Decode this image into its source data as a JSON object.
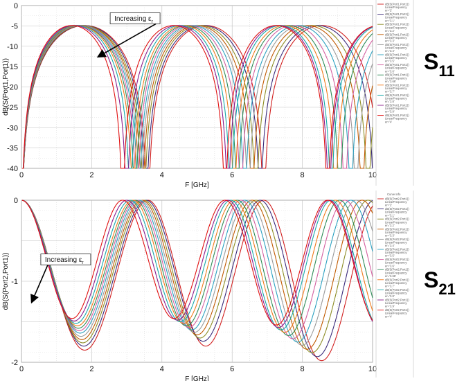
{
  "chart_data": [
    {
      "type": "line",
      "id": "s11",
      "xlabel": "F [GHz]",
      "ylabel": "dB(S(Port1,Port1))",
      "xlim": [
        0,
        10
      ],
      "ylim": [
        -40,
        0
      ],
      "xticks": [
        "0",
        "2",
        "4",
        "6",
        "8",
        "10"
      ],
      "yticks": [
        "0",
        "-5",
        "-10",
        "-15",
        "-20",
        "-25",
        "-30",
        "-35",
        "-40"
      ],
      "grid": true,
      "legend_position": "right",
      "side_label": "S",
      "side_label_sub": "11",
      "annotation": {
        "text": "Increasing ε",
        "sub": "r",
        "at": {
          "x": 2.2,
          "y": -12.5
        },
        "from": {
          "x": 3.0,
          "y": -4.5
        }
      },
      "legend_header": "",
      "legend": [
        {
          "line1": "dB(S(Port1,Port1))",
          "line2": "LinearFrequency",
          "line3": "er='2'"
        },
        {
          "line1": "dB(S(Port1,Port1))",
          "line2": "LinearFrequency",
          "line3": "er='3.1'"
        },
        {
          "line1": "dB(S(Port1,Port1))",
          "line2": "LinearFrequency",
          "line3": "er='3.2'"
        },
        {
          "line1": "dB(S(Port1,Port1))",
          "line2": "LinearFrequency",
          "line3": "er='3.3'"
        },
        {
          "line1": "dB(S(Port1,Port1))",
          "line2": "LinearFrequency",
          "line3": "er='3.4'"
        },
        {
          "line1": "dB(S(Port1,Port1))",
          "line2": "LinearFrequency",
          "line3": "er='3.5'"
        },
        {
          "line1": "dB(S(Port1,Port1))",
          "line2": "LinearFrequency",
          "line3": "er='3.6'"
        },
        {
          "line1": "dB(S(Port1,Port1))",
          "line2": "LinearFrequency",
          "line3": "er='3.66'"
        },
        {
          "line1": "dB(S(Port1,Port1))",
          "line2": "LinearFrequency",
          "line3": "er='3.7'"
        },
        {
          "line1": "dB(S(Port1,Port1))",
          "line2": "LinearFrequency",
          "line3": "er='3.8'"
        },
        {
          "line1": "dB(S(Port1,Port1))",
          "line2": "LinearFrequency",
          "line3": "er='3.9'"
        },
        {
          "line1": "dB(S(Port1,Port1))",
          "line2": "LinearFrequency",
          "line3": "er='4'"
        }
      ],
      "series": [
        {
          "color": "#d11f1f",
          "nulls": [
            3.6,
            6.9
          ]
        },
        {
          "color": "#3a2a7a",
          "nulls": [
            3.55,
            6.8
          ]
        },
        {
          "color": "#8c8c24",
          "nulls": [
            3.49,
            6.68
          ]
        },
        {
          "color": "#c05a00",
          "nulls": [
            3.44,
            6.57
          ]
        },
        {
          "color": "#9a9a9a",
          "nulls": [
            3.39,
            6.46
          ]
        },
        {
          "color": "#2aa0c0",
          "nulls": [
            3.34,
            6.36
          ]
        },
        {
          "color": "#d45fa0",
          "nulls": [
            3.29,
            6.25
          ]
        },
        {
          "color": "#2e8b57",
          "nulls": [
            3.24,
            6.15
          ]
        },
        {
          "color": "#f07a1a",
          "nulls": [
            3.18,
            6.06
          ]
        },
        {
          "color": "#17a9a9",
          "nulls": [
            3.1,
            5.96
          ]
        },
        {
          "color": "#8a1a8a",
          "nulls": [
            3.0,
            5.88
          ]
        },
        {
          "color": "#e01010",
          "nulls": [
            2.88,
            5.8
          ]
        }
      ]
    },
    {
      "type": "line",
      "id": "s21",
      "xlabel": "F [GHz]",
      "ylabel": "dB(S(Port2,Port1))",
      "xlim": [
        0,
        10
      ],
      "ylim": [
        -2,
        0
      ],
      "xticks": [
        "0",
        "2",
        "4",
        "6",
        "8",
        "10"
      ],
      "yticks": [
        "0",
        "-1",
        "-2"
      ],
      "grid": true,
      "legend_position": "right",
      "side_label": "S",
      "side_label_sub": "21",
      "annotation": {
        "text": "Increasing ε",
        "sub": "r",
        "at": {
          "x": 0.3,
          "y": -1.25
        },
        "from": {
          "x": 1.3,
          "y": -0.8
        }
      },
      "legend_header": "Curve Info",
      "legend": [
        {
          "line1": "dB(S(Port2,Port1))",
          "line2": "LinearFrequency",
          "line3": "er='2'"
        },
        {
          "line1": "dB(S(Port2,Port1))",
          "line2": "LinearFrequency",
          "line3": "er='3.1'"
        },
        {
          "line1": "dB(S(Port2,Port1))",
          "line2": "LinearFrequency",
          "line3": "er='3.2'"
        },
        {
          "line1": "dB(S(Port2,Port1))",
          "line2": "LinearFrequency",
          "line3": "er='3.3'"
        },
        {
          "line1": "dB(S(Port2,Port1))",
          "line2": "LinearFrequency",
          "line3": "er='3.4'"
        },
        {
          "line1": "dB(S(Port2,Port1))",
          "line2": "LinearFrequency",
          "line3": "er='3.5'"
        },
        {
          "line1": "dB(S(Port2,Port1))",
          "line2": "LinearFrequency",
          "line3": "er='3.6'"
        },
        {
          "line1": "dB(S(Port2,Port1))",
          "line2": "LinearFrequency",
          "line3": "er='3.66'"
        },
        {
          "line1": "dB(S(Port2,Port1))",
          "line2": "LinearFrequency",
          "line3": "er='3.7'"
        },
        {
          "line1": "dB(S(Port2,Port1))",
          "line2": "LinearFrequency",
          "line3": "er='3.8'"
        },
        {
          "line1": "dB(S(Port2,Port1))",
          "line2": "LinearFrequency",
          "line3": "er='3.9'"
        },
        {
          "line1": "dB(S(Port2,Port1))",
          "line2": "LinearFrequency",
          "line3": "er='4'"
        }
      ],
      "series": [
        {
          "color": "#d11f1f",
          "nulls": [
            3.6,
            6.9
          ],
          "min_depths": [
            1.85,
            1.8,
            1.98
          ]
        },
        {
          "color": "#3a2a7a",
          "nulls": [
            3.55,
            6.8
          ],
          "min_depths": [
            1.8,
            1.74,
            1.93
          ]
        },
        {
          "color": "#8c8c24",
          "nulls": [
            3.49,
            6.68
          ],
          "min_depths": [
            1.76,
            1.7,
            1.88
          ]
        },
        {
          "color": "#c05a00",
          "nulls": [
            3.44,
            6.57
          ],
          "min_depths": [
            1.72,
            1.66,
            1.84
          ]
        },
        {
          "color": "#9a9a9a",
          "nulls": [
            3.39,
            6.46
          ],
          "min_depths": [
            1.68,
            1.63,
            1.79
          ]
        },
        {
          "color": "#2aa0c0",
          "nulls": [
            3.34,
            6.36
          ],
          "min_depths": [
            1.64,
            1.6,
            1.75
          ]
        },
        {
          "color": "#d45fa0",
          "nulls": [
            3.29,
            6.25
          ],
          "min_depths": [
            1.61,
            1.57,
            1.71
          ]
        },
        {
          "color": "#2e8b57",
          "nulls": [
            3.24,
            6.15
          ],
          "min_depths": [
            1.58,
            1.55,
            1.67
          ]
        },
        {
          "color": "#f07a1a",
          "nulls": [
            3.18,
            6.06
          ],
          "min_depths": [
            1.55,
            1.52,
            1.63
          ]
        },
        {
          "color": "#17a9a9",
          "nulls": [
            3.1,
            5.96
          ],
          "min_depths": [
            1.52,
            1.5,
            1.6
          ]
        },
        {
          "color": "#8a1a8a",
          "nulls": [
            3.0,
            5.88
          ],
          "min_depths": [
            1.49,
            1.48,
            1.57
          ]
        },
        {
          "color": "#e01010",
          "nulls": [
            2.88,
            5.8
          ],
          "min_depths": [
            1.46,
            1.46,
            1.54
          ]
        }
      ]
    }
  ]
}
